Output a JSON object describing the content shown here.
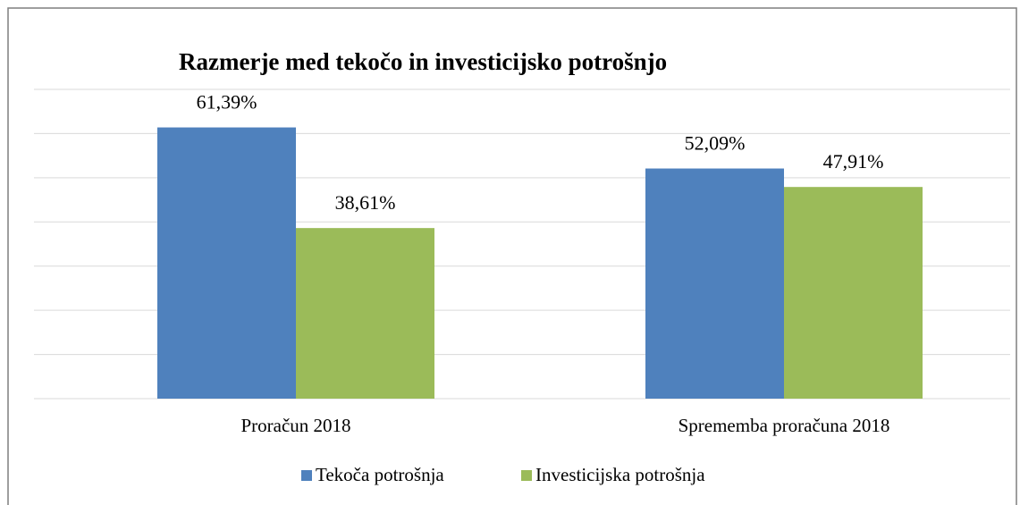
{
  "chart_data": {
    "type": "bar",
    "title": "Razmerje med tekočo in investicijsko potrošnjo",
    "categories": [
      "Proračun 2018",
      "Sprememba proračuna 2018"
    ],
    "series": [
      {
        "name": "Tekoča potrošnja",
        "color": "#4f81bd",
        "values": [
          61.39,
          52.09
        ],
        "value_labels": [
          "61,39%",
          "52,09%"
        ]
      },
      {
        "name": "Investicijska potrošnja",
        "color": "#9bbb59",
        "values": [
          38.61,
          47.91
        ],
        "value_labels": [
          "38,61%",
          "47,91%"
        ]
      }
    ],
    "ylim": [
      0,
      70
    ],
    "yticks": [
      0,
      10,
      20,
      30,
      40,
      50,
      60,
      70
    ],
    "grid": true,
    "legend": "bottom"
  }
}
